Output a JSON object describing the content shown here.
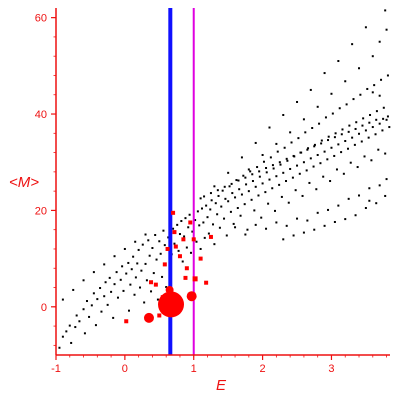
{
  "chart_data": {
    "type": "scatter",
    "title": "",
    "xlabel": "E",
    "ylabel": "<M>",
    "xlim": [
      -1.0,
      3.85
    ],
    "ylim": [
      -10,
      62
    ],
    "xticks": [
      -1,
      0,
      1,
      2,
      3
    ],
    "yticks": [
      0,
      20,
      40,
      60
    ],
    "grid": false,
    "colors": {
      "axis": "#ee1111",
      "background_points": "#000000",
      "highlight_points": "#ff0000",
      "vline_primary": "#1010ff",
      "vline_secondary": "#e000e0"
    },
    "vlines": [
      {
        "x": 0.66,
        "color": "#1010ff"
      },
      {
        "x": 1.0,
        "color": "#e000e0"
      }
    ],
    "highlight_points": [
      {
        "x": 0.67,
        "y": 0.5,
        "r": 13
      },
      {
        "x": 0.35,
        "y": -2.3,
        "r": 5
      },
      {
        "x": 0.97,
        "y": 2.2,
        "r": 5
      },
      {
        "x": 0.65,
        "y": 3.5,
        "r": 4
      },
      {
        "x": 0.5,
        "y": -1.8,
        "r": 2
      },
      {
        "x": 0.45,
        "y": 4.6,
        "r": 2
      },
      {
        "x": 0.38,
        "y": 5.1,
        "r": 2
      },
      {
        "x": 0.58,
        "y": 8.8,
        "r": 2
      },
      {
        "x": 0.62,
        "y": 12.0,
        "r": 2
      },
      {
        "x": 0.74,
        "y": 12.5,
        "r": 2
      },
      {
        "x": 0.8,
        "y": 10.5,
        "r": 2
      },
      {
        "x": 0.9,
        "y": 8.0,
        "r": 2
      },
      {
        "x": 0.88,
        "y": 6.0,
        "r": 2
      },
      {
        "x": 1.02,
        "y": 5.8,
        "r": 2.5
      },
      {
        "x": 1.1,
        "y": 10.0,
        "r": 2
      },
      {
        "x": 1.0,
        "y": 14.0,
        "r": 2
      },
      {
        "x": 0.7,
        "y": 19.5,
        "r": 2
      },
      {
        "x": 1.18,
        "y": 5.0,
        "r": 2
      },
      {
        "x": 0.02,
        "y": -3.0,
        "r": 2
      },
      {
        "x": 0.55,
        "y": 2.0,
        "r": 2
      },
      {
        "x": 1.25,
        "y": 14.5,
        "r": 2
      },
      {
        "x": 0.95,
        "y": 17.5,
        "r": 2
      },
      {
        "x": 0.85,
        "y": 14.0,
        "r": 2
      },
      {
        "x": 0.72,
        "y": 15.5,
        "r": 2
      }
    ],
    "background_series": {
      "description_free": true,
      "points": [
        [
          -0.95,
          -8.5
        ],
        [
          -0.9,
          -6.2
        ],
        [
          -0.85,
          -5.1
        ],
        [
          -0.8,
          -3.9
        ],
        [
          -0.78,
          -7.5
        ],
        [
          -0.72,
          -4.2
        ],
        [
          -0.7,
          -1.8
        ],
        [
          -0.66,
          -3.0
        ],
        [
          -0.6,
          -0.5
        ],
        [
          -0.58,
          -5.5
        ],
        [
          -0.55,
          1.2
        ],
        [
          -0.52,
          -2.1
        ],
        [
          -0.48,
          0.3
        ],
        [
          -0.45,
          2.8
        ],
        [
          -0.42,
          -3.8
        ],
        [
          -0.4,
          1.6
        ],
        [
          -0.36,
          3.9
        ],
        [
          -0.34,
          -1.0
        ],
        [
          -0.3,
          2.2
        ],
        [
          -0.28,
          5.1
        ],
        [
          -0.25,
          0.4
        ],
        [
          -0.22,
          6.0
        ],
        [
          -0.2,
          3.1
        ],
        [
          -0.17,
          -2.3
        ],
        [
          -0.15,
          4.7
        ],
        [
          -0.12,
          7.2
        ],
        [
          -0.1,
          1.9
        ],
        [
          -0.06,
          5.6
        ],
        [
          -0.04,
          8.4
        ],
        [
          -0.02,
          3.3
        ],
        [
          0.02,
          6.9
        ],
        [
          0.05,
          9.1
        ],
        [
          0.06,
          -0.8
        ],
        [
          0.08,
          4.6
        ],
        [
          0.1,
          7.8
        ],
        [
          0.12,
          10.4
        ],
        [
          0.14,
          2.5
        ],
        [
          0.16,
          6.1
        ],
        [
          0.18,
          9.0
        ],
        [
          0.2,
          11.8
        ],
        [
          0.22,
          4.0
        ],
        [
          0.24,
          7.5
        ],
        [
          0.26,
          12.9
        ],
        [
          0.28,
          0.9
        ],
        [
          0.3,
          8.9
        ],
        [
          0.32,
          5.5
        ],
        [
          0.34,
          13.8
        ],
        [
          0.36,
          10.6
        ],
        [
          0.38,
          3.2
        ],
        [
          0.4,
          12.2
        ],
        [
          0.42,
          7.0
        ],
        [
          0.44,
          14.9
        ],
        [
          0.46,
          9.8
        ],
        [
          0.48,
          1.5
        ],
        [
          0.5,
          13.6
        ],
        [
          0.52,
          11.0
        ],
        [
          0.54,
          6.2
        ],
        [
          0.56,
          15.8
        ],
        [
          0.58,
          12.8
        ],
        [
          0.6,
          4.1
        ],
        [
          0.63,
          14.4
        ],
        [
          0.68,
          10.9
        ],
        [
          0.7,
          16.2
        ],
        [
          0.72,
          13.1
        ],
        [
          0.76,
          17.0
        ],
        [
          0.78,
          11.6
        ],
        [
          0.8,
          15.1
        ],
        [
          0.82,
          17.8
        ],
        [
          0.84,
          9.4
        ],
        [
          0.86,
          14.6
        ],
        [
          0.88,
          18.4
        ],
        [
          0.9,
          12.3
        ],
        [
          0.92,
          16.5
        ],
        [
          0.94,
          19.1
        ],
        [
          0.96,
          11.2
        ],
        [
          0.98,
          15.6
        ],
        [
          1.02,
          18.0
        ],
        [
          1.04,
          13.5
        ],
        [
          1.06,
          19.8
        ],
        [
          1.08,
          16.9
        ],
        [
          1.1,
          12.0
        ],
        [
          1.12,
          20.4
        ],
        [
          1.14,
          17.5
        ],
        [
          1.16,
          14.3
        ],
        [
          1.18,
          21.0
        ],
        [
          1.2,
          18.6
        ],
        [
          1.22,
          15.2
        ],
        [
          1.24,
          20.2
        ],
        [
          1.26,
          22.1
        ],
        [
          1.28,
          17.1
        ],
        [
          1.3,
          13.0
        ],
        [
          1.32,
          21.5
        ],
        [
          1.34,
          19.2
        ],
        [
          1.36,
          23.0
        ],
        [
          1.38,
          16.4
        ],
        [
          1.4,
          20.8
        ],
        [
          1.42,
          24.1
        ],
        [
          1.44,
          18.3
        ],
        [
          1.46,
          22.4
        ],
        [
          1.48,
          14.8
        ],
        [
          1.5,
          21.9
        ],
        [
          1.52,
          25.0
        ],
        [
          1.54,
          19.7
        ],
        [
          1.56,
          23.6
        ],
        [
          1.58,
          17.2
        ],
        [
          1.6,
          22.7
        ],
        [
          1.62,
          26.3
        ],
        [
          1.64,
          20.5
        ],
        [
          1.66,
          24.4
        ],
        [
          1.68,
          18.9
        ],
        [
          1.7,
          23.3
        ],
        [
          1.72,
          27.2
        ],
        [
          1.74,
          21.3
        ],
        [
          1.76,
          25.4
        ],
        [
          1.78,
          16.0
        ],
        [
          1.8,
          24.0
        ],
        [
          1.82,
          28.1
        ],
        [
          1.84,
          22.2
        ],
        [
          1.86,
          26.1
        ],
        [
          1.88,
          20.0
        ],
        [
          1.9,
          24.9
        ],
        [
          1.92,
          29.0
        ],
        [
          1.94,
          23.1
        ],
        [
          1.96,
          27.0
        ],
        [
          1.98,
          18.5
        ],
        [
          2.0,
          25.6
        ],
        [
          2.02,
          30.1
        ],
        [
          2.04,
          23.8
        ],
        [
          2.06,
          27.9
        ],
        [
          2.08,
          21.4
        ],
        [
          2.1,
          26.4
        ],
        [
          2.12,
          31.0
        ],
        [
          2.14,
          24.6
        ],
        [
          2.16,
          28.7
        ],
        [
          2.18,
          19.9
        ],
        [
          2.2,
          27.1
        ],
        [
          2.22,
          32.2
        ],
        [
          2.24,
          25.3
        ],
        [
          2.26,
          29.5
        ],
        [
          2.28,
          22.8
        ],
        [
          2.3,
          27.8
        ],
        [
          2.32,
          33.0
        ],
        [
          2.34,
          26.1
        ],
        [
          2.36,
          30.3
        ],
        [
          2.38,
          21.6
        ],
        [
          2.4,
          28.6
        ],
        [
          2.42,
          34.1
        ],
        [
          2.44,
          26.8
        ],
        [
          2.46,
          31.2
        ],
        [
          2.48,
          24.2
        ],
        [
          2.5,
          29.3
        ],
        [
          2.52,
          35.0
        ],
        [
          2.54,
          27.6
        ],
        [
          2.56,
          32.0
        ],
        [
          2.58,
          23.0
        ],
        [
          2.6,
          30.0
        ],
        [
          2.62,
          36.2
        ],
        [
          2.64,
          28.3
        ],
        [
          2.66,
          32.9
        ],
        [
          2.68,
          25.7
        ],
        [
          2.7,
          30.8
        ],
        [
          2.72,
          37.1
        ],
        [
          2.74,
          29.1
        ],
        [
          2.76,
          33.6
        ],
        [
          2.78,
          24.4
        ],
        [
          2.8,
          31.5
        ],
        [
          2.82,
          38.0
        ],
        [
          2.84,
          29.8
        ],
        [
          2.86,
          34.5
        ],
        [
          2.88,
          27.0
        ],
        [
          2.9,
          32.2
        ],
        [
          2.92,
          39.3
        ],
        [
          2.94,
          30.6
        ],
        [
          2.96,
          35.3
        ],
        [
          2.98,
          26.1
        ],
        [
          3.0,
          33.0
        ],
        [
          3.02,
          40.1
        ],
        [
          3.04,
          31.3
        ],
        [
          3.06,
          36.0
        ],
        [
          3.08,
          28.5
        ],
        [
          3.1,
          33.7
        ],
        [
          3.12,
          41.2
        ],
        [
          3.14,
          32.1
        ],
        [
          3.16,
          36.8
        ],
        [
          3.18,
          27.6
        ],
        [
          3.2,
          34.4
        ],
        [
          3.22,
          42.0
        ],
        [
          3.24,
          32.8
        ],
        [
          3.26,
          37.6
        ],
        [
          3.28,
          29.9
        ],
        [
          3.3,
          35.1
        ],
        [
          3.32,
          43.1
        ],
        [
          3.34,
          33.6
        ],
        [
          3.36,
          38.3
        ],
        [
          3.38,
          29.0
        ],
        [
          3.4,
          35.9
        ],
        [
          3.42,
          44.0
        ],
        [
          3.44,
          34.3
        ],
        [
          3.46,
          39.1
        ],
        [
          3.48,
          31.2
        ],
        [
          3.5,
          36.6
        ],
        [
          3.52,
          45.2
        ],
        [
          3.54,
          35.1
        ],
        [
          3.56,
          39.8
        ],
        [
          3.58,
          30.4
        ],
        [
          3.6,
          37.3
        ],
        [
          3.62,
          46.0
        ],
        [
          3.64,
          35.8
        ],
        [
          3.66,
          40.6
        ],
        [
          3.68,
          32.6
        ],
        [
          3.7,
          38.0
        ],
        [
          3.72,
          47.1
        ],
        [
          3.74,
          36.6
        ],
        [
          3.76,
          41.3
        ],
        [
          3.78,
          31.8
        ],
        [
          3.8,
          38.8
        ],
        [
          3.82,
          48.0
        ],
        [
          3.84,
          37.3
        ],
        [
          1.6,
          16.5
        ],
        [
          1.75,
          15.0
        ],
        [
          1.9,
          17.0
        ],
        [
          2.05,
          16.2
        ],
        [
          2.2,
          17.5
        ],
        [
          2.35,
          16.8
        ],
        [
          2.5,
          18.3
        ],
        [
          2.65,
          17.9
        ],
        [
          2.8,
          19.5
        ],
        [
          2.95,
          20.1
        ],
        [
          3.1,
          21.0
        ],
        [
          3.25,
          22.4
        ],
        [
          3.4,
          23.1
        ],
        [
          3.55,
          24.6
        ],
        [
          3.7,
          25.2
        ],
        [
          3.8,
          26.5
        ],
        [
          1.8,
          28.5
        ],
        [
          2.0,
          31.5
        ],
        [
          2.2,
          33.8
        ],
        [
          2.4,
          36.2
        ],
        [
          2.6,
          38.9
        ],
        [
          2.8,
          41.5
        ],
        [
          3.0,
          44.2
        ],
        [
          3.2,
          46.8
        ],
        [
          3.4,
          49.5
        ],
        [
          3.6,
          52.0
        ],
        [
          3.7,
          55.0
        ],
        [
          3.8,
          57.5
        ],
        [
          3.78,
          61.5
        ],
        [
          3.5,
          58.0
        ],
        [
          3.3,
          54.5
        ],
        [
          3.1,
          51.0
        ],
        [
          2.9,
          48.5
        ],
        [
          2.7,
          45.0
        ],
        [
          2.5,
          42.5
        ],
        [
          2.3,
          39.8
        ],
        [
          2.1,
          37.2
        ],
        [
          1.9,
          34.0
        ],
        [
          1.7,
          31.0
        ],
        [
          1.5,
          27.8
        ],
        [
          1.3,
          25.0
        ],
        [
          1.1,
          22.5
        ],
        [
          3.6,
          44.5
        ],
        [
          3.7,
          43.8
        ],
        [
          3.82,
          39.5
        ],
        [
          3.75,
          39.0
        ],
        [
          3.65,
          38.8
        ],
        [
          3.55,
          38.2
        ],
        [
          3.45,
          37.6
        ],
        [
          3.35,
          36.9
        ],
        [
          3.25,
          36.3
        ],
        [
          3.15,
          35.8
        ],
        [
          3.05,
          35.2
        ],
        [
          2.95,
          34.6
        ],
        [
          2.85,
          33.9
        ],
        [
          2.75,
          33.3
        ],
        [
          2.65,
          32.6
        ],
        [
          2.55,
          32.0
        ],
        [
          2.45,
          31.3
        ],
        [
          2.35,
          30.7
        ],
        [
          2.25,
          30.0
        ],
        [
          2.15,
          29.4
        ],
        [
          2.05,
          28.8
        ],
        [
          1.95,
          28.1
        ],
        [
          1.85,
          27.5
        ],
        [
          1.75,
          26.8
        ],
        [
          1.65,
          26.2
        ],
        [
          1.55,
          25.5
        ],
        [
          1.45,
          24.9
        ],
        [
          1.35,
          24.2
        ],
        [
          1.25,
          23.6
        ],
        [
          1.15,
          22.9
        ],
        [
          0.3,
          15.0
        ],
        [
          0.15,
          13.5
        ],
        [
          0.0,
          12.0
        ],
        [
          -0.15,
          10.5
        ],
        [
          -0.3,
          8.8
        ],
        [
          -0.45,
          7.2
        ],
        [
          -0.6,
          5.5
        ],
        [
          -0.75,
          3.5
        ],
        [
          -0.9,
          1.5
        ],
        [
          3.55,
          22.0
        ],
        [
          3.65,
          21.5
        ],
        [
          3.78,
          23.0
        ],
        [
          3.5,
          20.5
        ],
        [
          3.35,
          19.0
        ],
        [
          3.2,
          18.2
        ],
        [
          3.05,
          17.6
        ],
        [
          2.9,
          16.8
        ],
        [
          2.75,
          16.0
        ],
        [
          2.6,
          15.4
        ],
        [
          2.45,
          14.8
        ],
        [
          2.3,
          14.0
        ]
      ]
    }
  }
}
